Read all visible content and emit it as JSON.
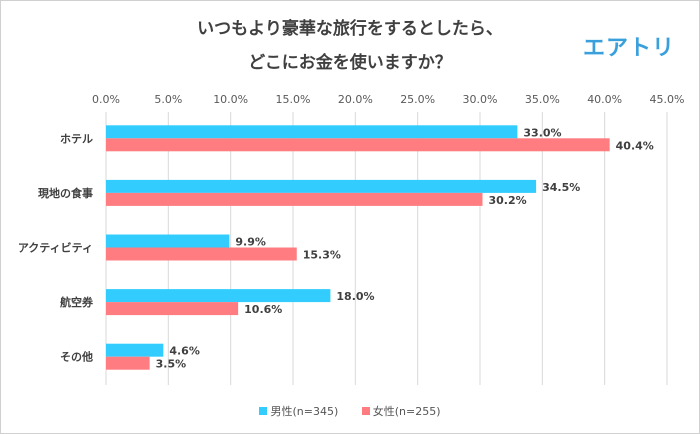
{
  "chart_data": {
    "type": "bar",
    "orientation": "horizontal",
    "title_line1": "いつもより豪華な旅行をするとしたら、",
    "title_line2": "どこにお金を使いますか？",
    "categories": [
      "ホテル",
      "現地の食事",
      "アクティビティ",
      "航空券",
      "その他"
    ],
    "series": [
      {
        "name": "男性(n=345)",
        "color": "#33ccff",
        "values": [
          33.0,
          34.5,
          9.9,
          18.0,
          4.6
        ],
        "labels": [
          "33.0%",
          "34.5%",
          "9.9%",
          "18.0%",
          "4.6%"
        ]
      },
      {
        "name": "女性(n=255)",
        "color": "#ff7c80",
        "values": [
          40.4,
          30.2,
          15.3,
          10.6,
          3.5
        ],
        "labels": [
          "40.4%",
          "30.2%",
          "15.3%",
          "10.6%",
          "3.5%"
        ]
      }
    ],
    "xlim": [
      0,
      45
    ],
    "xticks": [
      "0.0%",
      "5.0%",
      "10.0%",
      "15.0%",
      "20.0%",
      "25.0%",
      "30.0%",
      "35.0%",
      "40.0%",
      "45.0%"
    ],
    "grid": true,
    "legend_position": "bottom"
  },
  "logo": "エアトリ"
}
